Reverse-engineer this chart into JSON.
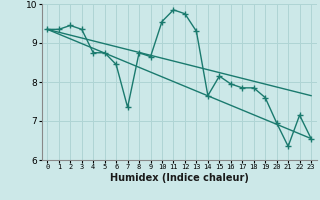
{
  "title": "",
  "xlabel": "Humidex (Indice chaleur)",
  "ylabel": "",
  "bg_color": "#cce8e8",
  "grid_color": "#afd4d4",
  "line_color": "#1a7a6e",
  "xlim": [
    -0.5,
    23.5
  ],
  "ylim": [
    6,
    10
  ],
  "yticks": [
    6,
    7,
    8,
    9,
    10
  ],
  "xticks": [
    0,
    1,
    2,
    3,
    4,
    5,
    6,
    7,
    8,
    9,
    10,
    11,
    12,
    13,
    14,
    15,
    16,
    17,
    18,
    19,
    20,
    21,
    22,
    23
  ],
  "series1_x": [
    0,
    1,
    2,
    3,
    4,
    5,
    6,
    7,
    8,
    9,
    10,
    11,
    12,
    13,
    14,
    15,
    16,
    17,
    18,
    19,
    20,
    21,
    22,
    23
  ],
  "series1_y": [
    9.35,
    9.35,
    9.45,
    9.35,
    8.75,
    8.75,
    8.45,
    7.35,
    8.75,
    8.65,
    9.55,
    9.85,
    9.75,
    9.3,
    7.65,
    8.15,
    7.95,
    7.85,
    7.85,
    7.6,
    6.95,
    6.35,
    7.15,
    6.55
  ],
  "trend1_x": [
    0,
    23
  ],
  "trend1_y": [
    9.35,
    7.65
  ],
  "trend2_x": [
    0,
    23
  ],
  "trend2_y": [
    9.35,
    6.55
  ],
  "marker_size": 4,
  "line_width": 1.0
}
